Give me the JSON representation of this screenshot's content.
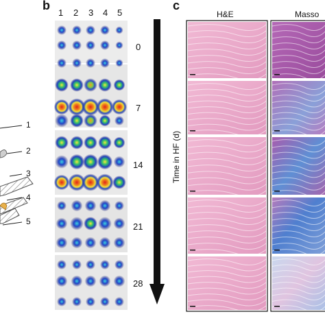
{
  "panels": {
    "b": {
      "letter": "b",
      "columns": [
        "1",
        "2",
        "3",
        "4",
        "5"
      ],
      "timepoints": [
        "0",
        "7",
        "14",
        "21",
        "28"
      ]
    },
    "c": {
      "letter": "c",
      "stains": [
        "H&E",
        "Masso"
      ],
      "axis_title": "Time in HF (d)"
    },
    "a_fragment": {
      "labels": [
        "1",
        "2",
        "3",
        "4",
        "5"
      ]
    }
  },
  "colors": {
    "he_pink": "#e9a6c6",
    "masson_purple": "#a55aa6",
    "masson_blue": "#6a8fd0",
    "blot_background": "#e8e8e8",
    "hot_red": "#e0221b"
  }
}
